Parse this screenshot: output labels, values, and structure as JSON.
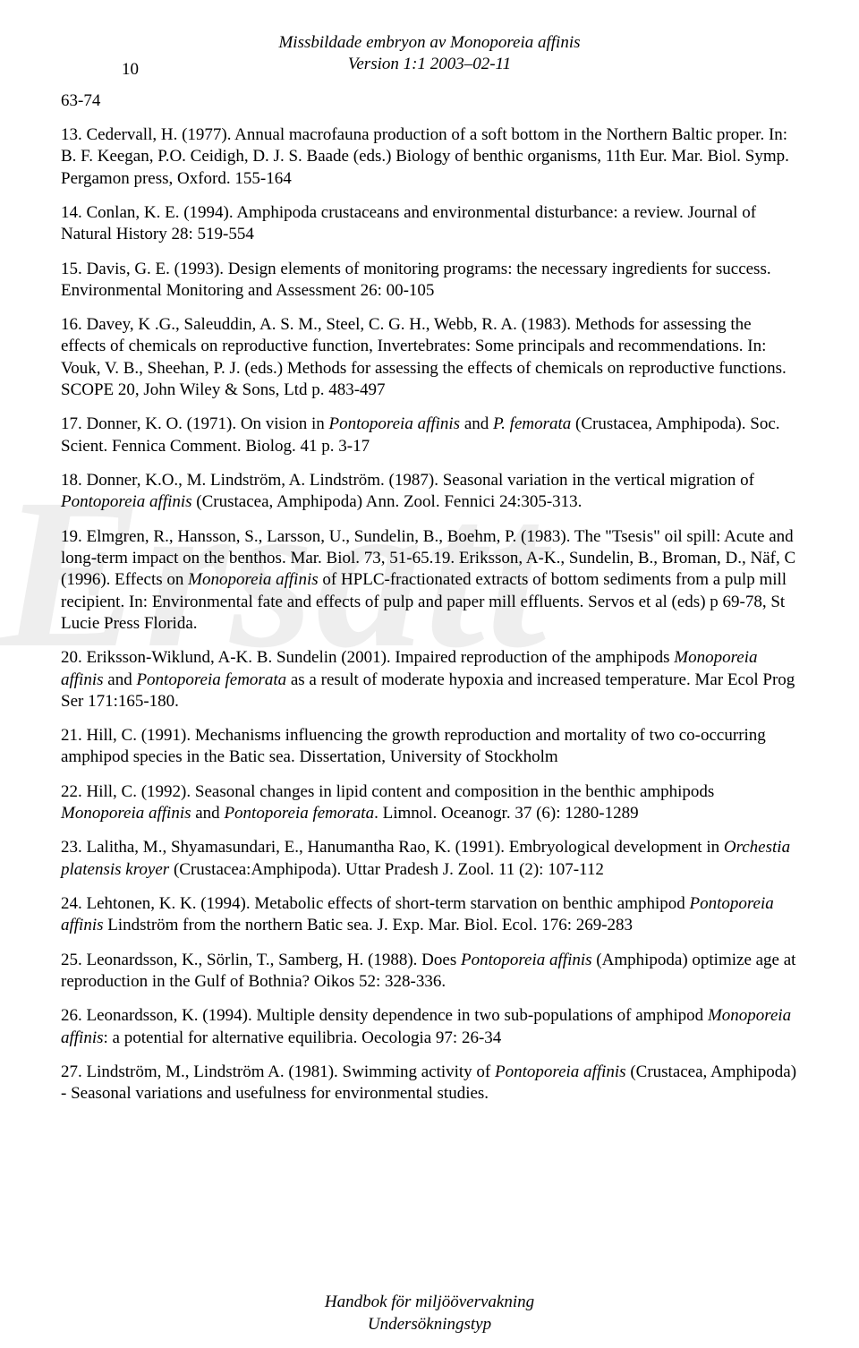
{
  "page_number": "10",
  "header_title": "Missbildade embryon av Monoporeia affinis",
  "header_version": "Version 1:1 2003–02-11",
  "prev_range": "63-74",
  "watermark": "Ersatt",
  "footer_line1": "Handbok för miljöövervakning",
  "footer_line2": "Undersökningstyp",
  "references": [
    {
      "pre": "13. Cedervall, H. (1977). Annual macrofauna production of a soft bottom in the Northern Baltic proper. In: B. F. Keegan, P.O. Ceidigh, D. J. S. Baade (eds.) Biology of benthic organisms, 11th Eur. Mar. Biol. Symp. Pergamon press, Oxford. 155-164"
    },
    {
      "pre": "14. Conlan, K. E. (1994). Amphipoda crustaceans and environmental disturbance: a review. Journal of Natural History 28: 519-554"
    },
    {
      "pre": "15. Davis, G. E. (1993). Design elements of monitoring programs: the necessary ingredients for success. Environmental Monitoring and Assessment 26: 00-105"
    },
    {
      "pre": "16. Davey, K .G., Saleuddin, A. S. M., Steel,  C. G. H., Webb, R. A. (1983). Methods for assessing the effects of chemicals on reproductive function, Invertebrates: Some principals and recommendations. In:  Vouk, V. B., Sheehan, P. J. (eds.) Methods for assessing the effects of chemicals on reproductive functions. SCOPE 20, John Wiley & Sons, Ltd p. 483-497"
    },
    {
      "pre": "17. Donner, K. O. (1971). On vision in ",
      "it1": "Pontoporeia affinis",
      "mid": " and ",
      "it2": "P. femorata",
      "post": " (Crustacea, Amphipoda). Soc. Scient. Fennica Comment. Biolog. 41 p. 3-17"
    },
    {
      "pre": "18. Donner, K.O., M. Lindström, A. Lindström. (1987). Seasonal variation in the vertical migration of ",
      "it1": "Pontoporeia affinis",
      "post": " (Crustacea, Amphipoda) Ann. Zool. Fennici 24:305-313."
    },
    {
      "pre": "19. Elmgren, R., Hansson, S., Larsson, U.,  Sundelin, B., Boehm, P. (1983). The \"Tsesis\" oil spill: Acute and long-term impact on the benthos. Mar. Biol. 73, 51-65.19. Eriksson, A-K., Sundelin, B., Broman, D., Näf, C (1996). Effects on ",
      "it1": "Monoporeia affinis",
      "post": " of HPLC-fractionated extracts of bottom sediments from a pulp mill recipient. In: Environmental fate and effects of pulp and paper mill effluents. Servos et al (eds) p 69-78, St Lucie Press Florida."
    },
    {
      "pre": "20. Eriksson-Wiklund, A-K. B. Sundelin (2001). Impaired reproduction of the amphipods ",
      "it1": "Monoporeia affinis",
      "mid": " and ",
      "it2": "Pontoporeia femorata",
      "post": " as a result of moderate hypoxia and increased temperature. Mar Ecol Prog Ser 171:165-180."
    },
    {
      "pre": "21. Hill, C. (1991). Mechanisms influencing the growth reproduction and mortality of two co-occurring amphipod species in the Batic sea. Dissertation, University of Stockholm"
    },
    {
      "pre": "22. Hill, C. (1992). Seasonal changes in lipid content and composition in the benthic amphipods ",
      "it1": "Monoporeia affinis",
      "mid": " and ",
      "it2": "Pontoporeia femorata",
      "post": ". Limnol. Oceanogr. 37 (6): 1280-1289"
    },
    {
      "pre": "23. Lalitha, M., Shyamasundari, E., Hanumantha Rao, K. (1991). Embryological development in ",
      "it1": "Orchestia platensis kroyer",
      "post": " (Crustacea:Amphipoda). Uttar Pradesh J. Zool. 11 (2): 107-112"
    },
    {
      "pre": "24. Lehtonen, K. K. (1994). Metabolic effects of short-term starvation on benthic amphipod ",
      "it1": "Pontoporeia affinis",
      "post": " Lindström from the northern Batic sea. J. Exp. Mar. Biol. Ecol. 176: 269-283"
    },
    {
      "pre": "25. Leonardsson, K., Sörlin, T., Samberg, H. (1988). Does ",
      "it1": "Pontoporeia affinis ",
      "post": "(Amphipoda) optimize age at reproduction in the Gulf of Bothnia? Oikos 52: 328-336."
    },
    {
      "pre": "26. Leonardsson, K. (1994). Multiple density dependence in two sub-populations of amphipod ",
      "it1": "Monoporeia affinis",
      "post": ": a potential for alternative equilibria. Oecologia 97: 26-34"
    },
    {
      "pre": "27. Lindström, M., Lindström A. (1981). Swimming activity of ",
      "it1": "Pontoporeia affinis",
      "post": " (Crustacea, Amphipoda) - Seasonal variations and usefulness for environmental studies."
    }
  ]
}
